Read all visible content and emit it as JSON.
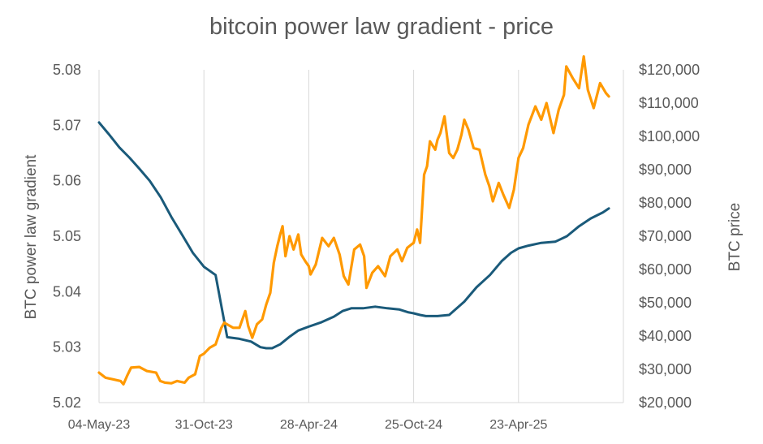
{
  "chart_data": {
    "type": "line",
    "title": "bitcoin power law gradient - price",
    "ylabel_left": "BTC power law gradient",
    "ylabel_right": "BTC price",
    "x_ticks": [
      "04-May-23",
      "31-Oct-23",
      "28-Apr-24",
      "25-Oct-24",
      "23-Apr-25"
    ],
    "x_range": [
      "2023-05-04",
      "2025-10-20"
    ],
    "y_left_range": [
      5.02,
      5.08
    ],
    "y_left_ticks": [
      "5.02",
      "5.03",
      "5.04",
      "5.05",
      "5.06",
      "5.07",
      "5.08"
    ],
    "y_right_range": [
      20000,
      120000
    ],
    "y_right_ticks": [
      "$20,000",
      "$30,000",
      "$40,000",
      "$50,000",
      "$60,000",
      "$70,000",
      "$80,000",
      "$90,000",
      "$100,000",
      "$110,000",
      "$120,000"
    ],
    "grid": "vertical",
    "legend": "none",
    "series": [
      {
        "axis": "left",
        "color": "#1a5a7a",
        "x": [
          "2023-05-04",
          "2023-05-20",
          "2023-06-08",
          "2023-06-25",
          "2023-07-12",
          "2023-07-30",
          "2023-08-18",
          "2023-09-05",
          "2023-09-25",
          "2023-10-12",
          "2023-10-31",
          "2023-11-20",
          "2023-12-10",
          "2023-12-31",
          "2024-01-20",
          "2024-02-05",
          "2024-02-15",
          "2024-02-25",
          "2024-03-10",
          "2024-03-25",
          "2024-04-10",
          "2024-04-28",
          "2024-05-20",
          "2024-06-10",
          "2024-06-25",
          "2024-07-10",
          "2024-07-30",
          "2024-08-20",
          "2024-09-10",
          "2024-09-30",
          "2024-10-15",
          "2024-10-25",
          "2024-11-05",
          "2024-11-15",
          "2024-12-05",
          "2024-12-25",
          "2025-01-20",
          "2025-02-10",
          "2025-03-05",
          "2025-03-25",
          "2025-04-10",
          "2025-04-23",
          "2025-05-10",
          "2025-06-01",
          "2025-06-25",
          "2025-07-15",
          "2025-08-05",
          "2025-08-25",
          "2025-09-15",
          "2025-09-25"
        ],
        "y": [
          5.0705,
          5.0685,
          5.066,
          5.0642,
          5.0622,
          5.06,
          5.057,
          5.0535,
          5.05,
          5.047,
          5.0445,
          5.043,
          5.0318,
          5.0315,
          5.031,
          5.03,
          5.0298,
          5.0298,
          5.0305,
          5.0318,
          5.033,
          5.0337,
          5.0345,
          5.0355,
          5.0365,
          5.037,
          5.037,
          5.0373,
          5.037,
          5.0368,
          5.0363,
          5.0361,
          5.0358,
          5.0356,
          5.0356,
          5.0358,
          5.0382,
          5.0408,
          5.043,
          5.0455,
          5.047,
          5.0478,
          5.0483,
          5.0488,
          5.049,
          5.05,
          5.0518,
          5.0532,
          5.0543,
          5.055
        ]
      },
      {
        "axis": "right",
        "color": "#ff9900",
        "x": [
          "2023-05-04",
          "2023-05-15",
          "2023-05-28",
          "2023-06-10",
          "2023-06-15",
          "2023-06-21",
          "2023-06-28",
          "2023-07-12",
          "2023-07-25",
          "2023-08-10",
          "2023-08-17",
          "2023-08-25",
          "2023-09-05",
          "2023-09-15",
          "2023-09-28",
          "2023-10-05",
          "2023-10-16",
          "2023-10-24",
          "2023-10-31",
          "2023-11-10",
          "2023-11-20",
          "2023-11-30",
          "2023-12-05",
          "2023-12-10",
          "2023-12-20",
          "2023-12-31",
          "2024-01-10",
          "2024-01-15",
          "2024-01-22",
          "2024-01-30",
          "2024-02-08",
          "2024-02-15",
          "2024-02-22",
          "2024-02-28",
          "2024-03-05",
          "2024-03-10",
          "2024-03-14",
          "2024-03-19",
          "2024-03-26",
          "2024-04-02",
          "2024-04-10",
          "2024-04-15",
          "2024-04-22",
          "2024-04-28",
          "2024-05-01",
          "2024-05-10",
          "2024-05-21",
          "2024-06-01",
          "2024-06-10",
          "2024-06-20",
          "2024-06-27",
          "2024-07-05",
          "2024-07-15",
          "2024-07-25",
          "2024-08-01",
          "2024-08-05",
          "2024-08-15",
          "2024-08-25",
          "2024-09-06",
          "2024-09-15",
          "2024-09-27",
          "2024-10-05",
          "2024-10-14",
          "2024-10-21",
          "2024-10-25",
          "2024-10-31",
          "2024-11-05",
          "2024-11-08",
          "2024-11-12",
          "2024-11-17",
          "2024-11-22",
          "2024-12-01",
          "2024-12-05",
          "2024-12-10",
          "2024-12-17",
          "2024-12-25",
          "2025-01-01",
          "2025-01-08",
          "2025-01-15",
          "2025-01-20",
          "2025-01-27",
          "2025-02-05",
          "2025-02-15",
          "2025-02-25",
          "2025-03-04",
          "2025-03-10",
          "2025-03-20",
          "2025-03-28",
          "2025-04-07",
          "2025-04-15",
          "2025-04-23",
          "2025-05-01",
          "2025-05-10",
          "2025-05-22",
          "2025-06-01",
          "2025-06-10",
          "2025-06-22",
          "2025-07-01",
          "2025-07-10",
          "2025-07-14",
          "2025-07-25",
          "2025-08-05",
          "2025-08-13",
          "2025-08-20",
          "2025-08-30",
          "2025-09-10",
          "2025-09-20",
          "2025-09-25"
        ],
        "y": [
          29000,
          27500,
          27000,
          26500,
          25500,
          28000,
          30500,
          30700,
          29500,
          29000,
          26500,
          26000,
          25800,
          26500,
          26000,
          27500,
          28500,
          34000,
          34700,
          36500,
          37500,
          42500,
          44000,
          43500,
          42500,
          42500,
          47500,
          43000,
          39500,
          43500,
          45000,
          49500,
          53000,
          62000,
          67000,
          70500,
          73000,
          64000,
          70000,
          66000,
          70500,
          64500,
          62500,
          61000,
          58500,
          61500,
          69500,
          67000,
          69500,
          64500,
          58000,
          55500,
          66000,
          67500,
          64000,
          54500,
          59000,
          61000,
          58000,
          64000,
          66000,
          62500,
          66500,
          67500,
          68000,
          72000,
          68000,
          76500,
          88500,
          91000,
          98500,
          96000,
          99000,
          101000,
          106000,
          95000,
          93500,
          96000,
          100500,
          105000,
          102000,
          96500,
          96000,
          88500,
          85000,
          80500,
          86000,
          82500,
          78500,
          84000,
          93500,
          96500,
          103500,
          109000,
          105000,
          110000,
          101000,
          108000,
          112500,
          121000,
          117500,
          114500,
          124000,
          114000,
          108500,
          116000,
          113000,
          112000
        ]
      }
    ]
  }
}
